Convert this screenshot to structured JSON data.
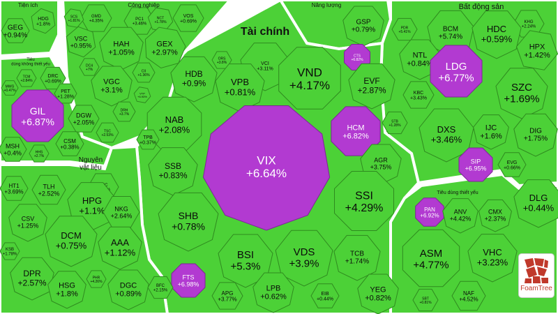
{
  "chart_data": {
    "type": "treemap",
    "colors": {
      "up": "#4cd137",
      "up_border": "#2f8a1f",
      "ceiling": "#b23ad1",
      "ceiling_border": "#7d2596"
    },
    "groups": [
      {
        "name": "Tiện ích"
      },
      {
        "name": "Công nghiệp"
      },
      {
        "name": "Năng lượng"
      },
      {
        "name": "Bất động sản"
      },
      {
        "name": "Tài chính"
      },
      {
        "name": "Tiêu dùng không thiết yếu"
      },
      {
        "name": "Nguyên vật liệu"
      },
      {
        "name": "Tiêu dùng thiết yếu"
      }
    ],
    "tiles": [
      {
        "ticker": "GEG",
        "change": "+0.94%",
        "group": "Tiện ích",
        "ceiling": false
      },
      {
        "ticker": "HDG",
        "change": "+1.8%",
        "group": "Tiện ích",
        "ceiling": false
      },
      {
        "ticker": "GMD",
        "change": "+4.35%",
        "group": "Công nghiệp",
        "ceiling": false
      },
      {
        "ticker": "SCS",
        "change": "+1.81%",
        "group": "Công nghiệp",
        "ceiling": false
      },
      {
        "ticker": "PC1",
        "change": "+3.46%",
        "group": "Công nghiệp",
        "ceiling": false
      },
      {
        "ticker": "NCT",
        "change": "+1.78%",
        "group": "Công nghiệp",
        "ceiling": false
      },
      {
        "ticker": "VOS",
        "change": "+0.69%",
        "group": "Công nghiệp",
        "ceiling": false
      },
      {
        "ticker": "VSC",
        "change": "+0.95%",
        "group": "Công nghiệp",
        "ceiling": false
      },
      {
        "ticker": "HAH",
        "change": "+1.05%",
        "group": "Công nghiệp",
        "ceiling": false
      },
      {
        "ticker": "GEX",
        "change": "+2.97%",
        "group": "Công nghiệp",
        "ceiling": false
      },
      {
        "ticker": "VGC",
        "change": "+3.1%",
        "group": "Công nghiệp",
        "ceiling": false
      },
      {
        "ticker": "DC4",
        "change": "+7%",
        "group": "Công nghiệp",
        "ceiling": false
      },
      {
        "ticker": "CII",
        "change": "+1.36%",
        "group": "Công nghiệp",
        "ceiling": false
      },
      {
        "ticker": "VTP",
        "change": "+6.93%",
        "group": "Công nghiệp",
        "ceiling": false
      },
      {
        "ticker": "DRH",
        "change": "+3.7%",
        "group": "Công nghiệp",
        "ceiling": false
      },
      {
        "ticker": "TSC",
        "change": "+2.53%",
        "group": "Công nghiệp",
        "ceiling": false
      },
      {
        "ticker": "GSP",
        "change": "+0.79%",
        "group": "Năng lượng",
        "ceiling": false
      },
      {
        "ticker": "KHG",
        "change": "+2.24%",
        "group": "Bất động sản",
        "ceiling": false
      },
      {
        "ticker": "PDR",
        "change": "+5.41%",
        "group": "Bất động sản",
        "ceiling": false
      },
      {
        "ticker": "BCM",
        "change": "+5.74%",
        "group": "Bất động sản",
        "ceiling": false
      },
      {
        "ticker": "HDC",
        "change": "+0.59%",
        "group": "Bất động sản",
        "ceiling": false
      },
      {
        "ticker": "NTL",
        "change": "+0.84%",
        "group": "Bất động sản",
        "ceiling": false
      },
      {
        "ticker": "HPX",
        "change": "+1.42%",
        "group": "Bất động sản",
        "ceiling": false
      },
      {
        "ticker": "LDG",
        "change": "+6.77%",
        "group": "Bất động sản",
        "ceiling": true
      },
      {
        "ticker": "KBC",
        "change": "+3.43%",
        "group": "Bất động sản",
        "ceiling": false
      },
      {
        "ticker": "SZC",
        "change": "+1.69%",
        "group": "Bất động sản",
        "ceiling": false
      },
      {
        "ticker": "DXS",
        "change": "+3.46%",
        "group": "Bất động sản",
        "ceiling": false
      },
      {
        "ticker": "IJC",
        "change": "+1.6%",
        "group": "Bất động sản",
        "ceiling": false
      },
      {
        "ticker": "DIG",
        "change": "+1.75%",
        "group": "Bất động sản",
        "ceiling": false
      },
      {
        "ticker": "SIP",
        "change": "+6.95%",
        "group": "Bất động sản",
        "ceiling": true
      },
      {
        "ticker": "EVG",
        "change": "+0.66%",
        "group": "Bất động sản",
        "ceiling": false
      },
      {
        "ticker": "ORS",
        "change": "+3.8%",
        "group": "Tài chính",
        "ceiling": false
      },
      {
        "ticker": "VCI",
        "change": "+3.11%",
        "group": "Tài chính",
        "ceiling": false
      },
      {
        "ticker": "CTS",
        "change": "+6.82%",
        "group": "Tài chính",
        "ceiling": true
      },
      {
        "ticker": "HDB",
        "change": "+0.9%",
        "group": "Tài chính",
        "ceiling": false
      },
      {
        "ticker": "VPB",
        "change": "+0.81%",
        "group": "Tài chính",
        "ceiling": false
      },
      {
        "ticker": "VND",
        "change": "+4.17%",
        "group": "Tài chính",
        "ceiling": false
      },
      {
        "ticker": "EVF",
        "change": "+2.87%",
        "group": "Tài chính",
        "ceiling": false
      },
      {
        "ticker": "NAB",
        "change": "+2.08%",
        "group": "Tài chính",
        "ceiling": false
      },
      {
        "ticker": "HCM",
        "change": "+6.82%",
        "group": "Tài chính",
        "ceiling": true
      },
      {
        "ticker": "STB",
        "change": "+1.28%",
        "group": "Tài chính",
        "ceiling": false
      },
      {
        "ticker": "TPB",
        "change": "+0.37%",
        "group": "Tài chính",
        "ceiling": false
      },
      {
        "ticker": "VIX",
        "change": "+6.64%",
        "group": "Tài chính",
        "ceiling": true
      },
      {
        "ticker": "SSB",
        "change": "+0.83%",
        "group": "Tài chính",
        "ceiling": false
      },
      {
        "ticker": "AGR",
        "change": "+3.75%",
        "group": "Tài chính",
        "ceiling": false
      },
      {
        "ticker": "SSI",
        "change": "+4.29%",
        "group": "Tài chính",
        "ceiling": false
      },
      {
        "ticker": "SHB",
        "change": "+0.78%",
        "group": "Tài chính",
        "ceiling": false
      },
      {
        "ticker": "BSI",
        "change": "+5.3%",
        "group": "Tài chính",
        "ceiling": false
      },
      {
        "ticker": "VDS",
        "change": "+3.9%",
        "group": "Tài chính",
        "ceiling": false
      },
      {
        "ticker": "TCB",
        "change": "+1.74%",
        "group": "Tài chính",
        "ceiling": false
      },
      {
        "ticker": "FTS",
        "change": "+6.98%",
        "group": "Tài chính",
        "ceiling": true
      },
      {
        "ticker": "APG",
        "change": "+3.77%",
        "group": "Tài chính",
        "ceiling": false
      },
      {
        "ticker": "LPB",
        "change": "+0.62%",
        "group": "Tài chính",
        "ceiling": false
      },
      {
        "ticker": "EIB",
        "change": "+0.44%",
        "group": "Tài chính",
        "ceiling": false
      },
      {
        "ticker": "YEG",
        "change": "+0.82%",
        "group": "Tài chính",
        "ceiling": false
      },
      {
        "ticker": "TCM",
        "change": "+2.84%",
        "group": "Tiêu dùng không thiết yếu",
        "ceiling": false
      },
      {
        "ticker": "DRC",
        "change": "+0.69%",
        "group": "Tiêu dùng không thiết yếu",
        "ceiling": false
      },
      {
        "ticker": "MWG",
        "change": "+0.47%",
        "group": "Tiêu dùng không thiết yếu",
        "ceiling": false
      },
      {
        "ticker": "PET",
        "change": "+1.28%",
        "group": "Tiêu dùng không thiết yếu",
        "ceiling": false
      },
      {
        "ticker": "GIL",
        "change": "+6.87%",
        "group": "Tiêu dùng không thiết yếu",
        "ceiling": true
      },
      {
        "ticker": "DGW",
        "change": "+2.05%",
        "group": "Tiêu dùng không thiết yếu",
        "ceiling": false
      },
      {
        "ticker": "MSH",
        "change": "+0.4%",
        "group": "Tiêu dùng không thiết yếu",
        "ceiling": false
      },
      {
        "ticker": "HHS",
        "change": "+2.7%",
        "group": "Tiêu dùng không thiết yếu",
        "ceiling": false
      },
      {
        "ticker": "CSM",
        "change": "+0.38%",
        "group": "Tiêu dùng không thiết yếu",
        "ceiling": false
      },
      {
        "ticker": "HT1",
        "change": "+3.69%",
        "group": "Nguyên vật liệu",
        "ceiling": false
      },
      {
        "ticker": "TLH",
        "change": "+2.52%",
        "group": "Nguyên vật liệu",
        "ceiling": false
      },
      {
        "ticker": "DHC",
        "change": "+5.95%",
        "group": "Nguyên vật liệu",
        "ceiling": false
      },
      {
        "ticker": "HPG",
        "change": "+1.1%",
        "group": "Nguyên vật liệu",
        "ceiling": false
      },
      {
        "ticker": "CSV",
        "change": "+1.25%",
        "group": "Nguyên vật liệu",
        "ceiling": false
      },
      {
        "ticker": "NKG",
        "change": "+2.64%",
        "group": "Nguyên vật liệu",
        "ceiling": false
      },
      {
        "ticker": "DCM",
        "change": "+0.75%",
        "group": "Nguyên vật liệu",
        "ceiling": false
      },
      {
        "ticker": "AAA",
        "change": "+1.12%",
        "group": "Nguyên vật liệu",
        "ceiling": false
      },
      {
        "ticker": "KSB",
        "change": "+1.78%",
        "group": "Nguyên vật liệu",
        "ceiling": false
      },
      {
        "ticker": "DPR",
        "change": "+2.57%",
        "group": "Nguyên vật liệu",
        "ceiling": false
      },
      {
        "ticker": "PHR",
        "change": "+4.26%",
        "group": "Nguyên vật liệu",
        "ceiling": false
      },
      {
        "ticker": "HSG",
        "change": "+1.8%",
        "group": "Nguyên vật liệu",
        "ceiling": false
      },
      {
        "ticker": "DGC",
        "change": "+0.89%",
        "group": "Nguyên vật liệu",
        "ceiling": false
      },
      {
        "ticker": "BFC",
        "change": "+2.15%",
        "group": "Nguyên vật liệu",
        "ceiling": false
      },
      {
        "ticker": "DLG",
        "change": "+0.44%",
        "group": "Tiêu dùng thiết yếu",
        "ceiling": false
      },
      {
        "ticker": "PAN",
        "change": "+6.92%",
        "group": "Tiêu dùng thiết yếu",
        "ceiling": true
      },
      {
        "ticker": "ANV",
        "change": "+4.42%",
        "group": "Tiêu dùng thiết yếu",
        "ceiling": false
      },
      {
        "ticker": "CMX",
        "change": "+2.37%",
        "group": "Tiêu dùng thiết yếu",
        "ceiling": false
      },
      {
        "ticker": "ASM",
        "change": "+4.77%",
        "group": "Tiêu dùng thiết yếu",
        "ceiling": false
      },
      {
        "ticker": "VHC",
        "change": "+3.23%",
        "group": "Tiêu dùng thiết yếu",
        "ceiling": false
      },
      {
        "ticker": "SBT",
        "change": "+0.81%",
        "group": "Tiêu dùng thiết yếu",
        "ceiling": false
      },
      {
        "ticker": "NAF",
        "change": "+4.52%",
        "group": "Tiêu dùng thiết yếu",
        "ceiling": false
      }
    ]
  },
  "logo": {
    "text": "FoamTree"
  }
}
